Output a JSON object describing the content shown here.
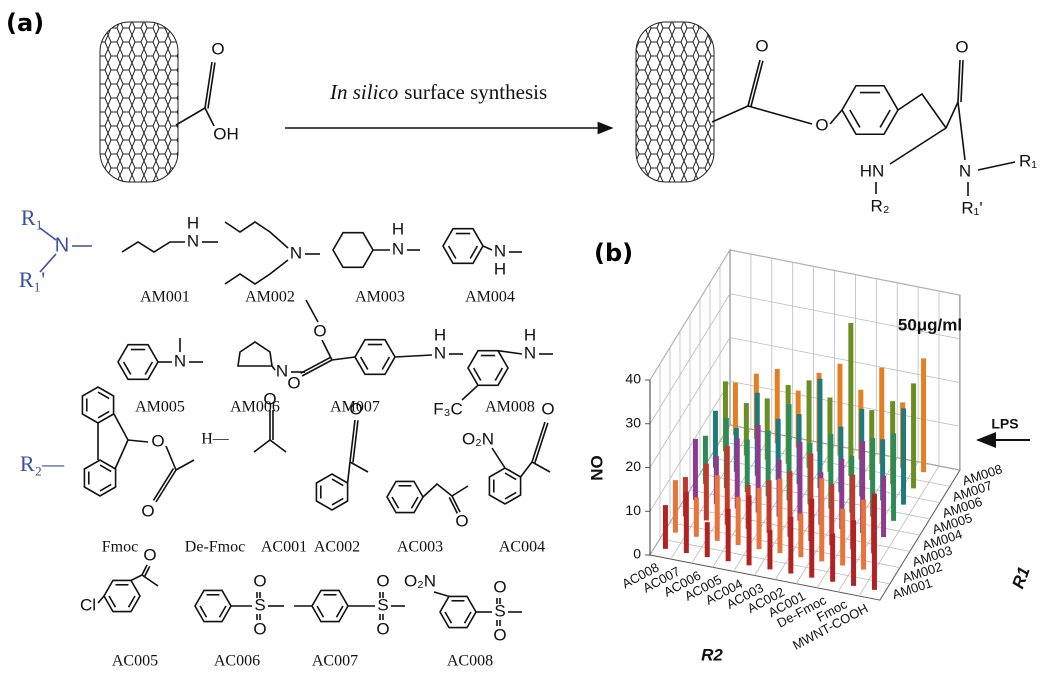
{
  "panel_a": {
    "label": "(a)",
    "arrow_label": [
      "In silico",
      "surface synthesis"
    ],
    "reactant_atoms": [
      "O",
      "OH"
    ],
    "product_atoms": [
      "O",
      "O",
      "O",
      "HN",
      "N",
      "R₁",
      "R₂",
      "R₁'"
    ],
    "r1_key": [
      "R₁",
      "N",
      "R₁'"
    ],
    "r2_key": "R₂—",
    "amines": [
      {
        "name": "AM001",
        "atoms": [
          "H",
          "N"
        ]
      },
      {
        "name": "AM002",
        "atoms": [
          "N"
        ]
      },
      {
        "name": "AM003",
        "atoms": [
          "H",
          "N"
        ]
      },
      {
        "name": "AM004",
        "atoms": [
          "N",
          "H"
        ]
      },
      {
        "name": "AM005",
        "atoms": [
          "N"
        ]
      },
      {
        "name": "AM006",
        "atoms": [
          "N"
        ]
      },
      {
        "name": "AM007",
        "atoms": [
          "O",
          "O",
          "H",
          "N"
        ]
      },
      {
        "name": "AM008",
        "atoms": [
          "H",
          "N",
          "F₃C"
        ]
      }
    ],
    "acyls": [
      {
        "name": "Fmoc",
        "atoms": [
          "O",
          "O"
        ]
      },
      {
        "name": "De-Fmoc",
        "atoms": [
          "H—"
        ]
      },
      {
        "name": "AC001",
        "atoms": [
          "O"
        ]
      },
      {
        "name": "AC002",
        "atoms": [
          "O"
        ]
      },
      {
        "name": "AC003",
        "atoms": [
          "O"
        ]
      },
      {
        "name": "AC004",
        "atoms": [
          "O₂N",
          "O"
        ]
      },
      {
        "name": "AC005",
        "atoms": [
          "Cl",
          "O"
        ]
      },
      {
        "name": "AC006",
        "atoms": [
          "S",
          "O",
          "O"
        ]
      },
      {
        "name": "AC007",
        "atoms": [
          "S",
          "O",
          "O"
        ]
      },
      {
        "name": "AC008",
        "atoms": [
          "O₂N",
          "S",
          "O",
          "O"
        ]
      }
    ]
  },
  "chart_data": {
    "type": "bar3d",
    "panel_label": "(b)",
    "title": "50μg/ml",
    "annotation": "LPS",
    "ylabel": "NO",
    "xlabel": "R2",
    "zlabel": "R1",
    "categories": [
      "AC008",
      "AC007",
      "AC006",
      "AC005",
      "AC004",
      "AC003",
      "AC002",
      "AC001",
      "De-Fmoc",
      "Fmoc",
      "MWNT-COOH"
    ],
    "series": [
      {
        "name": "AM001",
        "color": "#b22222",
        "values": [
          10,
          14,
          8,
          12,
          16,
          9,
          13,
          18,
          11,
          15,
          22
        ]
      },
      {
        "name": "AM002",
        "color": "#e8743b",
        "values": [
          12,
          9,
          15,
          11,
          14,
          17,
          10,
          19,
          13,
          16,
          null
        ]
      },
      {
        "name": "AM003",
        "color": "#c0392b",
        "values": [
          9,
          13,
          18,
          10,
          12,
          15,
          20,
          14,
          17,
          12,
          null
        ]
      },
      {
        "name": "AM004",
        "color": "#8e3a8e",
        "values": [
          14,
          11,
          16,
          20,
          13,
          18,
          12,
          16,
          21,
          14,
          null
        ]
      },
      {
        "name": "AM005",
        "color": "#2e8b57",
        "values": [
          11,
          16,
          12,
          15,
          22,
          14,
          17,
          13,
          18,
          20,
          null
        ]
      },
      {
        "name": "AM006",
        "color": "#1f7a7a",
        "values": [
          13,
          10,
          19,
          14,
          16,
          25,
          15,
          20,
          14,
          22,
          null
        ]
      },
      {
        "name": "AM007",
        "color": "#6b8e23",
        "values": [
          16,
          12,
          14,
          18,
          20,
          17,
          35,
          16,
          19,
          24,
          null
        ]
      },
      {
        "name": "AM008",
        "color": "#e67e22",
        "values": [
          12,
          15,
          17,
          13,
          18,
          21,
          16,
          22,
          15,
          26,
          null
        ]
      }
    ],
    "ylim": [
      0,
      40
    ],
    "yticks": [
      0,
      10,
      20,
      30,
      40
    ],
    "grid": true
  }
}
